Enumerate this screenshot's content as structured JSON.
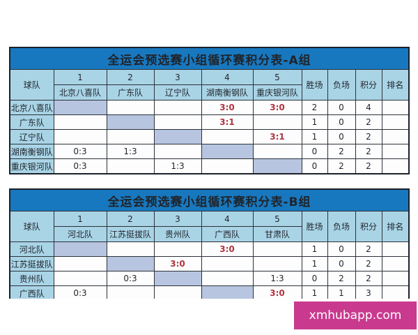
{
  "colors": {
    "title_bar": "#1878bf",
    "header_cell": "#a9d4e6",
    "diagonal_cell": "#b7c5e0",
    "win_score": "#b03440",
    "text_dark": "#1f242b",
    "border_outer": "#1b212b",
    "border_inner": "#2b3139",
    "watermark_bg": "#c93a8e"
  },
  "watermark": {
    "text": "xmhubapp.com"
  },
  "chart_data": [
    {
      "type": "table",
      "title": "全运会预选赛小组循环赛积分表-A组",
      "corner_header": "球队",
      "number_headers": [
        "1",
        "2",
        "3",
        "4",
        "5"
      ],
      "opponent_headers": [
        "北京八喜队",
        "广东队",
        "辽宁队",
        "湖南衡钢队",
        "重庆银河队"
      ],
      "stat_headers": [
        "胜场",
        "负场",
        "积分",
        "排名"
      ],
      "rows": [
        {
          "team": "北京八喜队",
          "scores": [
            "",
            "",
            "",
            "3:0",
            "3:0"
          ],
          "diag": 0,
          "wins": "2",
          "losses": "0",
          "points": "4",
          "rank": ""
        },
        {
          "team": "广东队",
          "scores": [
            "",
            "",
            "",
            "3:1",
            ""
          ],
          "diag": 1,
          "wins": "1",
          "losses": "0",
          "points": "2",
          "rank": ""
        },
        {
          "team": "辽宁队",
          "scores": [
            "",
            "",
            "",
            "",
            "3:1"
          ],
          "diag": 2,
          "wins": "1",
          "losses": "0",
          "points": "2",
          "rank": ""
        },
        {
          "team": "湖南衡钢队",
          "scores": [
            "0:3",
            "1:3",
            "",
            "",
            ""
          ],
          "diag": 3,
          "wins": "0",
          "losses": "2",
          "points": "2",
          "rank": ""
        },
        {
          "team": "重庆银河队",
          "scores": [
            "0:3",
            "",
            "1:3",
            "",
            ""
          ],
          "diag": 4,
          "wins": "0",
          "losses": "2",
          "points": "2",
          "rank": ""
        }
      ]
    },
    {
      "type": "table",
      "title": "全运会预选赛小组循环赛积分表-B组",
      "corner_header": "球队",
      "number_headers": [
        "1",
        "2",
        "3",
        "4",
        "5"
      ],
      "opponent_headers": [
        "河北队",
        "江苏挺拔队",
        "贵州队",
        "广西队",
        "甘肃队"
      ],
      "stat_headers": [
        "胜场",
        "负场",
        "积分",
        "排名"
      ],
      "rows": [
        {
          "team": "河北队",
          "scores": [
            "",
            "",
            "",
            "3:0",
            ""
          ],
          "diag": 0,
          "wins": "1",
          "losses": "0",
          "points": "2",
          "rank": ""
        },
        {
          "team": "江苏挺拔队",
          "scores": [
            "",
            "",
            "3:0",
            "",
            ""
          ],
          "diag": 1,
          "wins": "1",
          "losses": "0",
          "points": "2",
          "rank": ""
        },
        {
          "team": "贵州队",
          "scores": [
            "",
            "0:3",
            "",
            "",
            "1:3"
          ],
          "diag": 2,
          "wins": "0",
          "losses": "2",
          "points": "2",
          "rank": ""
        },
        {
          "team": "广西队",
          "scores": [
            "0:3",
            "",
            "",
            "",
            "3:0"
          ],
          "diag": 3,
          "wins": "1",
          "losses": "1",
          "points": "3",
          "rank": ""
        }
      ]
    }
  ]
}
